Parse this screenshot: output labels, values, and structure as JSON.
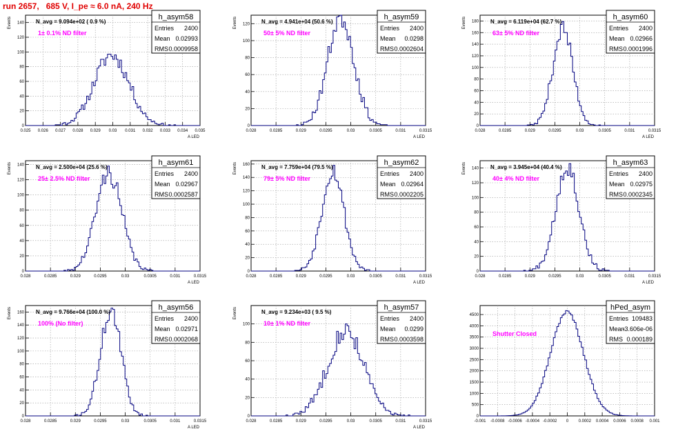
{
  "run_title": "run 2657,   685 V, I_pe ≈ 6.0 nA, 240 Hz",
  "colors": {
    "hist": "#00007f",
    "annotation": "#ff00ff",
    "title": "#e00000",
    "grid": "#9a9a9a"
  },
  "chart_data": [
    {
      "type": "histogram",
      "stat_title": "h_asym58",
      "header": "N_avg = 9.094e+02 ( 0.9 %)",
      "annotation": "1± 0.1% ND filter",
      "stats": [
        {
          "label": "Entries",
          "value": "2400"
        },
        {
          "label": "Mean",
          "value": "0.02993"
        },
        {
          "label": "RMS",
          "value": "0.0009958"
        }
      ],
      "ylabel": "Events",
      "xlabel": "A_LED",
      "xlim": [
        0.025,
        0.035
      ],
      "ylim": [
        0,
        150
      ],
      "xticks": [
        0.025,
        0.026,
        0.027,
        0.028,
        0.029,
        0.03,
        0.031,
        0.032,
        0.033,
        0.034,
        0.035
      ],
      "xtick_labels": [
        "0.025",
        "0.026",
        "0.027",
        "0.028",
        "0.029",
        "0.03",
        "0.031",
        "0.032",
        "0.033",
        "0.034",
        "0.035"
      ],
      "yticks": [
        0,
        20,
        40,
        60,
        80,
        100,
        120,
        140
      ],
      "yrange": [
        0,
        150
      ],
      "mean": 0.02993,
      "rms": 0.0009958,
      "entries": 2400,
      "nbins": 100,
      "seed": 11
    },
    {
      "type": "histogram",
      "stat_title": "h_asym59",
      "header": "N_avg = 4.941e+04 (50.6 %)",
      "annotation": "50± 5% ND filter",
      "stats": [
        {
          "label": "Entries",
          "value": "2400"
        },
        {
          "label": "Mean",
          "value": "0.0298"
        },
        {
          "label": "RMS",
          "value": "0.0002604"
        }
      ],
      "ylabel": "Events",
      "xlabel": "A_LED",
      "xlim": [
        0.028,
        0.0315
      ],
      "ylim": [
        0,
        130
      ],
      "xticks": [
        0.028,
        0.0285,
        0.029,
        0.0295,
        0.03,
        0.0305,
        0.031,
        0.0315
      ],
      "xtick_labels": [
        "0.028",
        "0.0285",
        "0.029",
        "0.0295",
        "0.03",
        "0.0305",
        "0.031",
        "0.0315"
      ],
      "yticks": [
        0,
        20,
        40,
        60,
        80,
        100,
        120
      ],
      "yrange": [
        0,
        130
      ],
      "mean": 0.0298,
      "rms": 0.0002604,
      "entries": 2400,
      "nbins": 100,
      "seed": 23
    },
    {
      "type": "histogram",
      "stat_title": "h_asym60",
      "header": "N_avg = 6.119e+04 (62.7 %)",
      "annotation": "63± 5% ND filter",
      "stats": [
        {
          "label": "Entries",
          "value": "2400"
        },
        {
          "label": "Mean",
          "value": "0.02966"
        },
        {
          "label": "RMS",
          "value": "0.0001996"
        }
      ],
      "ylabel": "Events",
      "xlabel": "A_LED",
      "xlim": [
        0.028,
        0.0315
      ],
      "ylim": [
        0,
        190
      ],
      "xticks": [
        0.028,
        0.0285,
        0.029,
        0.0295,
        0.03,
        0.0305,
        0.031,
        0.0315
      ],
      "xtick_labels": [
        "0.028",
        "0.0285",
        "0.029",
        "0.0295",
        "0.03",
        "0.0305",
        "0.031",
        "0.0315"
      ],
      "yticks": [
        0,
        20,
        40,
        60,
        80,
        100,
        120,
        140,
        160,
        180
      ],
      "yrange": [
        0,
        190
      ],
      "mean": 0.02966,
      "rms": 0.0001996,
      "entries": 2400,
      "nbins": 100,
      "seed": 37
    },
    {
      "type": "histogram",
      "stat_title": "h_asym61",
      "header": "N_avg = 2.500e+04 (25.6 %)",
      "annotation": "25± 2.5% ND filter",
      "stats": [
        {
          "label": "Entries",
          "value": "2400"
        },
        {
          "label": "Mean",
          "value": "0.02967"
        },
        {
          "label": "RMS",
          "value": "0.0002587"
        }
      ],
      "ylabel": "Events",
      "xlabel": "A_LED",
      "xlim": [
        0.028,
        0.0315
      ],
      "ylim": [
        0,
        145
      ],
      "xticks": [
        0.028,
        0.0285,
        0.029,
        0.0295,
        0.03,
        0.0305,
        0.031,
        0.0315
      ],
      "xtick_labels": [
        "0.028",
        "0.0285",
        "0.029",
        "0.0295",
        "0.03",
        "0.0305",
        "0.031",
        "0.0315"
      ],
      "yticks": [
        0,
        20,
        40,
        60,
        80,
        100,
        120,
        140
      ],
      "yrange": [
        0,
        145
      ],
      "mean": 0.02967,
      "rms": 0.0002587,
      "entries": 2400,
      "nbins": 100,
      "seed": 41
    },
    {
      "type": "histogram",
      "stat_title": "h_asym62",
      "header": "N_avg = 7.759e+04 (79.5 %)",
      "annotation": "79± 5% ND filter",
      "stats": [
        {
          "label": "Entries",
          "value": "2400"
        },
        {
          "label": "Mean",
          "value": "0.02964"
        },
        {
          "label": "RMS",
          "value": "0.0002205"
        }
      ],
      "ylabel": "Events",
      "xlabel": "A_LED",
      "xlim": [
        0.028,
        0.0315
      ],
      "ylim": [
        0,
        165
      ],
      "xticks": [
        0.028,
        0.0285,
        0.029,
        0.0295,
        0.03,
        0.0305,
        0.031,
        0.0315
      ],
      "xtick_labels": [
        "0.028",
        "0.0285",
        "0.029",
        "0.0295",
        "0.03",
        "0.0305",
        "0.031",
        "0.0315"
      ],
      "yticks": [
        0,
        20,
        40,
        60,
        80,
        100,
        120,
        140,
        160
      ],
      "yrange": [
        0,
        165
      ],
      "mean": 0.02964,
      "rms": 0.0002205,
      "entries": 2400,
      "nbins": 100,
      "seed": 53
    },
    {
      "type": "histogram",
      "stat_title": "h_asym63",
      "header": "N_avg = 3.945e+04 (40.4 %)",
      "annotation": "40± 4% ND filter",
      "stats": [
        {
          "label": "Entries",
          "value": "2400"
        },
        {
          "label": "Mean",
          "value": "0.02975"
        },
        {
          "label": "RMS",
          "value": "0.0002345"
        }
      ],
      "ylabel": "Events",
      "xlabel": "A_LED",
      "xlim": [
        0.028,
        0.0315
      ],
      "ylim": [
        0,
        150
      ],
      "xticks": [
        0.028,
        0.0285,
        0.029,
        0.0295,
        0.03,
        0.0305,
        0.031,
        0.0315
      ],
      "xtick_labels": [
        "0.028",
        "0.0285",
        "0.029",
        "0.0295",
        "0.03",
        "0.0305",
        "0.031",
        "0.0315"
      ],
      "yticks": [
        0,
        20,
        40,
        60,
        80,
        100,
        120,
        140
      ],
      "yrange": [
        0,
        150
      ],
      "mean": 0.02975,
      "rms": 0.0002345,
      "entries": 2400,
      "nbins": 100,
      "seed": 67
    },
    {
      "type": "histogram",
      "stat_title": "h_asym56",
      "header": "N_avg = 9.766e+04 (100.0 %)",
      "annotation": "100% (No filter)",
      "stats": [
        {
          "label": "Entries",
          "value": "2400"
        },
        {
          "label": "Mean",
          "value": "0.02971"
        },
        {
          "label": "RMS",
          "value": "0.0002068"
        }
      ],
      "ylabel": "Events",
      "xlabel": "A_LED",
      "xlim": [
        0.028,
        0.0315
      ],
      "ylim": [
        0,
        170
      ],
      "xticks": [
        0.028,
        0.0285,
        0.029,
        0.0295,
        0.03,
        0.0305,
        0.031,
        0.0315
      ],
      "xtick_labels": [
        "0.028",
        "0.0285",
        "0.029",
        "0.0295",
        "0.03",
        "0.0305",
        "0.031",
        "0.0315"
      ],
      "yticks": [
        0,
        20,
        40,
        60,
        80,
        100,
        120,
        140,
        160
      ],
      "yrange": [
        0,
        170
      ],
      "mean": 0.02971,
      "rms": 0.0002068,
      "entries": 2400,
      "nbins": 100,
      "seed": 71
    },
    {
      "type": "histogram",
      "stat_title": "h_asym57",
      "header": "N_avg = 9.234e+03 ( 9.5 %)",
      "annotation": "10± 1% ND filter",
      "stats": [
        {
          "label": "Entries",
          "value": "2400"
        },
        {
          "label": "Mean",
          "value": "0.0299"
        },
        {
          "label": "RMS",
          "value": "0.0003598"
        }
      ],
      "ylabel": "Events",
      "xlabel": "A_LED",
      "xlim": [
        0.028,
        0.0315
      ],
      "ylim": [
        0,
        120
      ],
      "xticks": [
        0.028,
        0.0285,
        0.029,
        0.0295,
        0.03,
        0.0305,
        0.031,
        0.0315
      ],
      "xtick_labels": [
        "0.028",
        "0.0285",
        "0.029",
        "0.0295",
        "0.03",
        "0.0305",
        "0.031",
        "0.0315"
      ],
      "yticks": [
        0,
        20,
        40,
        60,
        80,
        100
      ],
      "yrange": [
        0,
        120
      ],
      "mean": 0.0299,
      "rms": 0.0003598,
      "entries": 2400,
      "nbins": 100,
      "seed": 83
    },
    {
      "type": "histogram",
      "stat_title": "hPed_asym",
      "header": "",
      "annotation": "Shutter Closed",
      "stats": [
        {
          "label": "Entries",
          "value": "109483"
        },
        {
          "label": "Mean",
          "value": "-3.606e-06"
        },
        {
          "label": "RMS",
          "value": "0.000189"
        }
      ],
      "ylabel": "",
      "xlabel": "",
      "xlim": [
        -0.001,
        0.001
      ],
      "ylim": [
        0,
        4900
      ],
      "xticks": [
        -0.001,
        -0.0008,
        -0.0006,
        -0.0004,
        -0.0002,
        0,
        0.0002,
        0.0004,
        0.0006,
        0.0008,
        0.001
      ],
      "xtick_labels": [
        "-0.001",
        "-0.0008",
        "-0.0006",
        "-0.0004",
        "-0.0002",
        "0",
        "0.0002",
        "0.0004",
        "0.0006",
        "0.0008",
        "0.001"
      ],
      "yticks": [
        0,
        500,
        1000,
        1500,
        2000,
        2500,
        3000,
        3500,
        4000,
        4500
      ],
      "yrange": [
        0,
        4900
      ],
      "mean": -3.606e-06,
      "rms": 0.000189,
      "entries": 109483,
      "nbins": 100,
      "seed": 97
    }
  ]
}
